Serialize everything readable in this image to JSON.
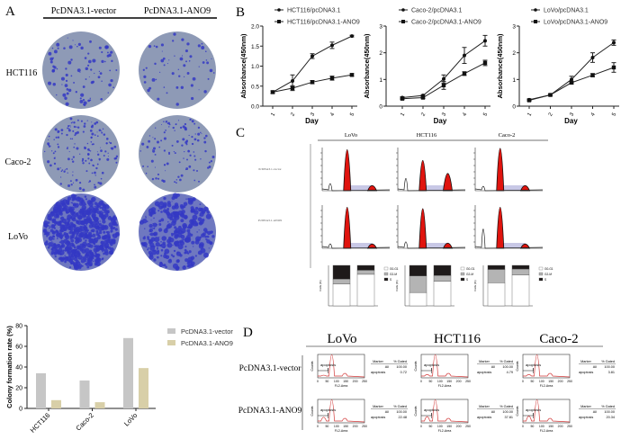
{
  "panel_labels": {
    "a": "A",
    "b": "B",
    "c": "C",
    "d": "D"
  },
  "panel_a": {
    "columns": [
      "PcDNA3.1-vector",
      "PcDNA3.1-ANO9"
    ],
    "rows": [
      "HCT116",
      "Caco-2",
      "LoVo"
    ],
    "dish_color": "#8e9ab6",
    "stain_color": "#3438c4"
  },
  "chart_data": [
    {
      "type": "bar",
      "ylabel": "Colony formation rate (%)",
      "ylim": [
        0,
        80
      ],
      "yticks": [
        "0",
        "20",
        "40",
        "60",
        "80"
      ],
      "categories": [
        "HCT116",
        "Caco-2",
        "LoVo"
      ],
      "series": [
        {
          "name": "PcDNA3.1-vector",
          "values": [
            34,
            27,
            68
          ],
          "color": "#c6c6c6"
        },
        {
          "name": "PcDNA3.1-ANO9",
          "values": [
            8,
            6,
            39
          ],
          "color": "#d8cfa8"
        }
      ],
      "legend": "right"
    },
    {
      "type": "line",
      "xlabel": "Day",
      "ylabel": "Absorbance(450nm)",
      "x": [
        "1",
        "2",
        "3",
        "4",
        "5"
      ],
      "ylim": [
        0,
        2.0
      ],
      "yticks": [
        "0.0",
        "0.5",
        "1.0",
        "1.5",
        "2.0"
      ],
      "legend": "top",
      "series": [
        {
          "name": "HCT116/pcDNA3.1",
          "values": [
            0.35,
            0.63,
            1.25,
            1.52,
            1.75
          ],
          "errors": [
            0.03,
            0.15,
            0.06,
            0.08,
            0.02
          ],
          "marker": "circle"
        },
        {
          "name": "HCT116/pcDNA3.1-ANO9",
          "values": [
            0.35,
            0.45,
            0.6,
            0.7,
            0.78
          ],
          "errors": [
            0.03,
            0.06,
            0.04,
            0.05,
            0.03
          ],
          "marker": "square"
        }
      ]
    },
    {
      "type": "line",
      "xlabel": "Day",
      "ylabel": "Absorbance(450nm)",
      "x": [
        "1",
        "2",
        "3",
        "4",
        "5"
      ],
      "ylim": [
        0,
        3
      ],
      "yticks": [
        "0",
        "1",
        "2",
        "3"
      ],
      "legend": "top",
      "series": [
        {
          "name": "Caco-2/pcDNA3.1",
          "values": [
            0.32,
            0.4,
            1.02,
            1.9,
            2.45
          ],
          "errors": [
            0.03,
            0.03,
            0.15,
            0.3,
            0.2
          ],
          "marker": "circle"
        },
        {
          "name": "Caco-2/pcDNA3.1-ANO9",
          "values": [
            0.28,
            0.32,
            0.78,
            1.22,
            1.62
          ],
          "errors": [
            0.03,
            0.03,
            0.15,
            0.07,
            0.1
          ],
          "marker": "square"
        }
      ]
    },
    {
      "type": "line",
      "xlabel": "Day",
      "ylabel": "Absorbance(450nm)",
      "x": [
        "1",
        "2",
        "3",
        "4",
        "5"
      ],
      "ylim": [
        0,
        3
      ],
      "yticks": [
        "0",
        "1",
        "2",
        "3"
      ],
      "legend": "top",
      "series": [
        {
          "name": "LoVo/pcDNA3.1",
          "values": [
            0.24,
            0.42,
            1.0,
            1.82,
            2.38
          ],
          "errors": [
            0.03,
            0.03,
            0.12,
            0.18,
            0.1
          ],
          "marker": "circle"
        },
        {
          "name": "LoVo/pcDNA3.1-ANO9",
          "values": [
            0.22,
            0.42,
            0.88,
            1.16,
            1.45
          ],
          "errors": [
            0.03,
            0.03,
            0.05,
            0.06,
            0.18
          ],
          "marker": "square"
        }
      ]
    },
    {
      "type": "bar",
      "stacked": true,
      "ylabel": "Cells (%)",
      "ylim": [
        0,
        100
      ],
      "legend_labels": [
        "G0-G1",
        "G2-M",
        "S"
      ],
      "colors": [
        "#ffffff",
        "#b4b4b4",
        "#1e1a1a"
      ],
      "groups": [
        {
          "cell": "LoVo",
          "bars": [
            [
              54,
              12,
              34
            ],
            [
              78,
              10,
              12
            ]
          ]
        },
        {
          "cell": "HCT116",
          "bars": [
            [
              33,
              41,
              26
            ],
            [
              61,
              14,
              25
            ]
          ]
        },
        {
          "cell": "Caco-2",
          "bars": [
            [
              57,
              33,
              10
            ],
            [
              76,
              15,
              9
            ]
          ]
        }
      ]
    }
  ],
  "panel_c": {
    "columns": [
      "LoVo",
      "HCT116",
      "Caco-2"
    ],
    "rows": [
      "PcDNA3.1-vector",
      "PcDNA3.1-ANO9"
    ],
    "peak_color": "#e0140e"
  },
  "panel_d": {
    "columns": [
      "LoVo",
      "HCT116",
      "Caco-2"
    ],
    "rows": [
      "PcDNA3.1-vector",
      "PcDNA3.1-ANO9"
    ],
    "xlabel": "FL2-Area",
    "ylabel": "Counts",
    "xticks": [
      "0",
      "50",
      "100",
      "150",
      "200",
      "250"
    ],
    "gate_label": "apoptosis",
    "table_headers": [
      "Marker",
      "% Gated"
    ],
    "all_label": "All",
    "all_value": "100.00",
    "apoptosis": [
      [
        "0.72",
        "4.79",
        "3.81"
      ],
      [
        "22.48",
        "37.81",
        "20.34"
      ]
    ],
    "curve_color": "#d23a3a"
  }
}
